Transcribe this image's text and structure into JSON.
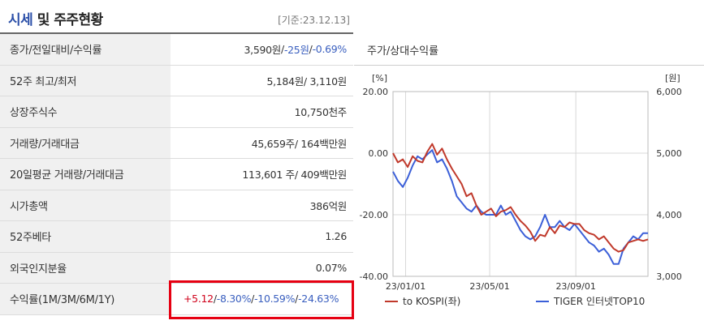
{
  "header": {
    "title_part1": "시세",
    "title_part2": " 및 주주현황",
    "ref_date": "[기준:23.12.13]"
  },
  "table": {
    "rows": [
      {
        "label": "종가/전일대비/수익률",
        "value_parts": [
          "3,590원",
          " / ",
          "-25원",
          " / ",
          "-0.69%"
        ]
      },
      {
        "label": "52주 최고/최저",
        "value": "5,184원/ 3,110원"
      },
      {
        "label": "상장주식수",
        "value": "10,750천주"
      },
      {
        "label": "거래량/거래대금",
        "value": "45,659주/ 164백만원"
      },
      {
        "label": "20일평균 거래량/거래대금",
        "value": "113,601 주/ 409백만원"
      },
      {
        "label": "시가총액",
        "value": "386억원"
      },
      {
        "label": "52주베타",
        "value": "1.26"
      },
      {
        "label": "외국인지분율",
        "value": "0.07%"
      },
      {
        "label": "수익률(1M/3M/6M/1Y)",
        "value_parts": [
          "+5.12",
          " / ",
          "-8.30%",
          " / ",
          "-10.59%",
          " / ",
          "-24.63%"
        ]
      }
    ]
  },
  "chart_panel": {
    "title": "주가/상대수익률"
  },
  "chart_data": {
    "type": "line",
    "left_axis": {
      "unit": "[%]",
      "ticks": [
        "20.00",
        "0.00",
        "-20.00",
        "-40.00"
      ],
      "ylim": [
        -40,
        20
      ]
    },
    "right_axis": {
      "unit": "[원]",
      "ticks": [
        "6,000",
        "5,000",
        "4,000",
        "3,000"
      ],
      "ylim": [
        3000,
        6000
      ]
    },
    "x_ticks": [
      "23/01/01",
      "23/05/01",
      "23/09/01"
    ],
    "grid": true,
    "legend_position": "bottom",
    "series": [
      {
        "name": "to KOSPI(좌)",
        "color": "#c0392b",
        "axis": "left",
        "x": [
          "2022-12-14",
          "2022-12-21",
          "2022-12-28",
          "2023-01-04",
          "2023-01-11",
          "2023-01-18",
          "2023-01-25",
          "2023-02-01",
          "2023-02-08",
          "2023-02-15",
          "2023-02-22",
          "2023-03-01",
          "2023-03-08",
          "2023-03-15",
          "2023-03-22",
          "2023-03-29",
          "2023-04-05",
          "2023-04-12",
          "2023-04-19",
          "2023-04-26",
          "2023-05-03",
          "2023-05-10",
          "2023-05-17",
          "2023-05-24",
          "2023-05-31",
          "2023-06-07",
          "2023-06-14",
          "2023-06-21",
          "2023-06-28",
          "2023-07-05",
          "2023-07-12",
          "2023-07-19",
          "2023-07-26",
          "2023-08-02",
          "2023-08-09",
          "2023-08-16",
          "2023-08-23",
          "2023-08-30",
          "2023-09-06",
          "2023-09-13",
          "2023-09-20",
          "2023-09-27",
          "2023-10-04",
          "2023-10-11",
          "2023-10-18",
          "2023-10-25",
          "2023-11-01",
          "2023-11-08",
          "2023-11-15",
          "2023-11-22",
          "2023-11-29",
          "2023-12-06",
          "2023-12-13"
        ],
        "values": [
          0.0,
          -3.0,
          -2.0,
          -4.5,
          -1.0,
          -2.5,
          -3.0,
          0.5,
          3.0,
          -0.5,
          1.5,
          -2.0,
          -5.0,
          -7.5,
          -10.0,
          -14.0,
          -13.0,
          -17.0,
          -20.0,
          -19.0,
          -18.0,
          -20.5,
          -19.0,
          -18.5,
          -17.5,
          -20.0,
          -22.0,
          -23.5,
          -25.5,
          -28.5,
          -26.5,
          -27.0,
          -24.0,
          -26.0,
          -23.5,
          -24.0,
          -22.5,
          -23.0,
          -23.0,
          -25.0,
          -26.0,
          -26.5,
          -28.0,
          -27.0,
          -29.0,
          -31.0,
          -32.0,
          -31.5,
          -29.0,
          -28.5,
          -28.0,
          -28.5,
          -28.0
        ]
      },
      {
        "name": "TIGER 인터넷TOP10",
        "color": "#3b5fd8",
        "axis": "right",
        "x": [
          "2022-12-14",
          "2022-12-21",
          "2022-12-28",
          "2023-01-04",
          "2023-01-11",
          "2023-01-18",
          "2023-01-25",
          "2023-02-01",
          "2023-02-08",
          "2023-02-15",
          "2023-02-22",
          "2023-03-01",
          "2023-03-08",
          "2023-03-15",
          "2023-03-22",
          "2023-03-29",
          "2023-04-05",
          "2023-04-12",
          "2023-04-19",
          "2023-04-26",
          "2023-05-03",
          "2023-05-10",
          "2023-05-17",
          "2023-05-24",
          "2023-05-31",
          "2023-06-07",
          "2023-06-14",
          "2023-06-21",
          "2023-06-28",
          "2023-07-05",
          "2023-07-12",
          "2023-07-19",
          "2023-07-26",
          "2023-08-02",
          "2023-08-09",
          "2023-08-16",
          "2023-08-23",
          "2023-08-30",
          "2023-09-06",
          "2023-09-13",
          "2023-09-20",
          "2023-09-27",
          "2023-10-04",
          "2023-10-11",
          "2023-10-18",
          "2023-10-25",
          "2023-11-01",
          "2023-11-08",
          "2023-11-15",
          "2023-11-22",
          "2023-11-29",
          "2023-12-06",
          "2023-12-13"
        ],
        "values": [
          4700,
          4550,
          4450,
          4600,
          4800,
          4950,
          4900,
          4980,
          5050,
          4850,
          4900,
          4750,
          4550,
          4300,
          4200,
          4100,
          4050,
          4150,
          4050,
          4000,
          4000,
          4000,
          4150,
          4000,
          4050,
          3900,
          3750,
          3650,
          3600,
          3650,
          3800,
          4000,
          3800,
          3800,
          3900,
          3800,
          3750,
          3850,
          3750,
          3650,
          3550,
          3500,
          3400,
          3450,
          3350,
          3200,
          3200,
          3450,
          3550,
          3650,
          3600,
          3700,
          3700
        ]
      }
    ]
  }
}
